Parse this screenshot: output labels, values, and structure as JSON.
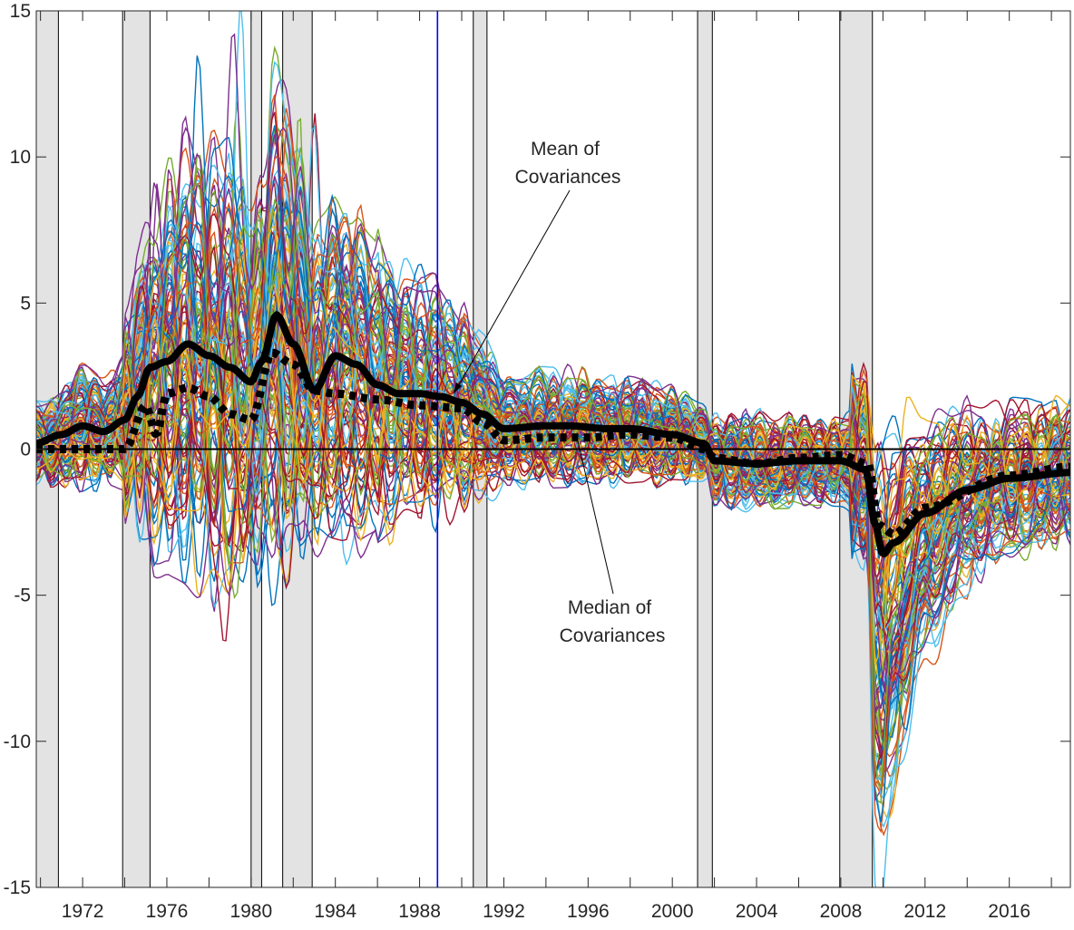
{
  "chart_data": {
    "type": "line",
    "title": "",
    "xlabel": "",
    "ylabel": "",
    "xlim": [
      1969.8,
      2018.9
    ],
    "ylim": [
      -15,
      15
    ],
    "yticks": [
      -15,
      -10,
      -5,
      0,
      5,
      10,
      15
    ],
    "ytick_labels": [
      "-15",
      "-10",
      "-5",
      "0",
      "5",
      "10",
      "15"
    ],
    "xticks": [
      1972,
      1976,
      1980,
      1984,
      1988,
      1992,
      1996,
      2000,
      2004,
      2008,
      2012,
      2016
    ],
    "xtick_labels": [
      "1972",
      "1976",
      "1980",
      "1984",
      "1988",
      "1992",
      "1996",
      "2000",
      "2004",
      "2008",
      "2012",
      "2016"
    ],
    "minor_xtick_step": 2,
    "grid": false,
    "recessions": [
      [
        1969.8,
        1970.85
      ],
      [
        1973.9,
        1975.2
      ],
      [
        1980.0,
        1980.5
      ],
      [
        1981.5,
        1982.9
      ],
      [
        1990.55,
        1991.2
      ],
      [
        2001.2,
        2001.9
      ],
      [
        2007.95,
        2009.5
      ]
    ],
    "vertical_marker": {
      "x": 1988.85,
      "color": "#0000ff"
    },
    "zero_line": 0,
    "individual_series_count": 110,
    "palette": [
      "#0072BD",
      "#D95319",
      "#EDB120",
      "#7E2F8E",
      "#77AC30",
      "#4DBEEE",
      "#A2142F"
    ],
    "series": [
      {
        "name": "Mean of Covariances",
        "style": "solid",
        "x": [
          1969.8,
          1971,
          1972,
          1973,
          1974,
          1974.6,
          1975.2,
          1976,
          1977,
          1978,
          1979,
          1980,
          1980.5,
          1981.2,
          1982,
          1983,
          1984,
          1985,
          1986,
          1987,
          1988,
          1989,
          1990,
          1991,
          1992,
          1994,
          1995,
          1997,
          1998,
          2000,
          2001.5,
          2002,
          2004,
          2006,
          2008,
          2009.2,
          2009.6,
          2010,
          2010.5,
          2012,
          2014,
          2016,
          2018.9
        ],
        "values": [
          0.2,
          0.5,
          0.8,
          0.6,
          1.0,
          1.8,
          2.8,
          3.0,
          3.6,
          3.2,
          2.8,
          2.3,
          3.0,
          4.6,
          3.6,
          2.0,
          3.2,
          2.9,
          2.2,
          1.9,
          1.9,
          1.8,
          1.6,
          1.2,
          0.7,
          0.8,
          0.8,
          0.7,
          0.7,
          0.5,
          0.2,
          -0.4,
          -0.5,
          -0.4,
          -0.4,
          -0.7,
          -2.5,
          -3.6,
          -3.2,
          -2.2,
          -1.4,
          -1.0,
          -0.8
        ]
      },
      {
        "name": "Median of Covariances",
        "style": "dotted",
        "x": [
          1969.8,
          1972,
          1974,
          1975,
          1975.5,
          1976,
          1977,
          1978,
          1979,
          1980,
          1981,
          1982,
          1983,
          1984,
          1986,
          1988,
          1990,
          1991,
          1992,
          1994,
          1996,
          1998,
          2000,
          2001.5,
          2002,
          2004,
          2006,
          2008,
          2009.3,
          2009.8,
          2010.5,
          2012,
          2016,
          2018.9
        ],
        "values": [
          0,
          0,
          0,
          1.5,
          0.5,
          1.9,
          2.1,
          1.8,
          1.2,
          1.0,
          3.3,
          2.9,
          2.0,
          1.9,
          1.7,
          1.5,
          1.4,
          0.9,
          0.3,
          0.4,
          0.4,
          0.5,
          0.4,
          0.0,
          -0.3,
          -0.5,
          -0.3,
          -0.2,
          -0.5,
          -2.6,
          -2.9,
          -2.0,
          -0.9,
          -0.6
        ]
      }
    ],
    "annotations": [
      {
        "lines": [
          "Mean of",
          "Covariances"
        ],
        "points_to": [
          1989.8,
          1.9
        ]
      },
      {
        "lines": [
          "Median of",
          "Covariances"
        ],
        "points_to": [
          1995.2,
          0.45
        ]
      }
    ]
  }
}
